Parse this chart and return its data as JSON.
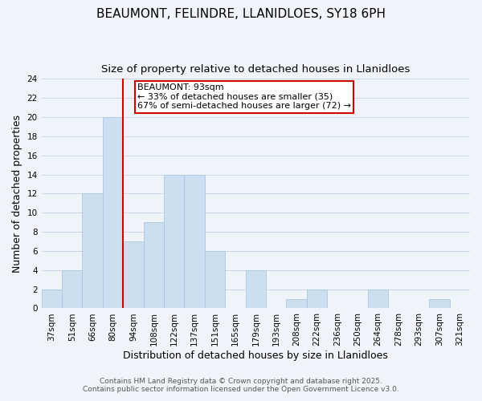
{
  "title": "BEAUMONT, FELINDRE, LLANIDLOES, SY18 6PH",
  "subtitle": "Size of property relative to detached houses in Llanidloes",
  "xlabel": "Distribution of detached houses by size in Llanidloes",
  "ylabel": "Number of detached properties",
  "bar_color": "#ccdff0",
  "bar_edge_color": "#a8c8e0",
  "categories": [
    "37sqm",
    "51sqm",
    "66sqm",
    "80sqm",
    "94sqm",
    "108sqm",
    "122sqm",
    "137sqm",
    "151sqm",
    "165sqm",
    "179sqm",
    "193sqm",
    "208sqm",
    "222sqm",
    "236sqm",
    "250sqm",
    "264sqm",
    "278sqm",
    "293sqm",
    "307sqm",
    "321sqm"
  ],
  "values": [
    2,
    4,
    12,
    20,
    7,
    9,
    14,
    14,
    6,
    0,
    4,
    0,
    1,
    2,
    0,
    0,
    2,
    0,
    0,
    1,
    0
  ],
  "ylim": [
    0,
    24
  ],
  "yticks": [
    0,
    2,
    4,
    6,
    8,
    10,
    12,
    14,
    16,
    18,
    20,
    22,
    24
  ],
  "marker_label": "BEAUMONT: 93sqm",
  "marker_color": "#cc0000",
  "annotation_line1": "← 33% of detached houses are smaller (35)",
  "annotation_line2": "67% of semi-detached houses are larger (72) →",
  "footer1": "Contains HM Land Registry data © Crown copyright and database right 2025.",
  "footer2": "Contains public sector information licensed under the Open Government Licence v3.0.",
  "background_color": "#f0f4f8",
  "grid_color": "#c8d8e8",
  "title_fontsize": 11,
  "subtitle_fontsize": 9.5,
  "axis_label_fontsize": 9,
  "tick_fontsize": 7.5,
  "annotation_fontsize": 8,
  "footer_fontsize": 6.5
}
